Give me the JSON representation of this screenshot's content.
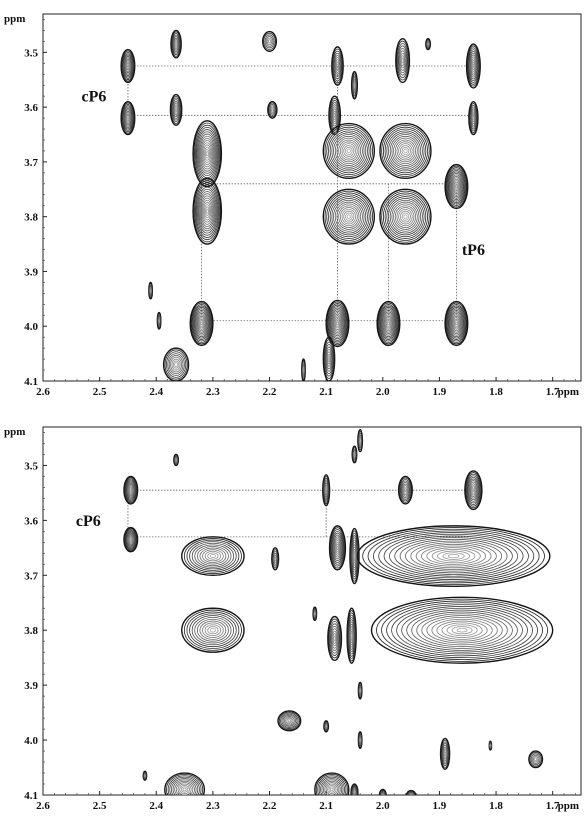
{
  "chart_data": [
    {
      "type": "contour",
      "panel": "top",
      "xlabel": "ppm",
      "ylabel": "ppm",
      "xlim": [
        2.6,
        1.65
      ],
      "ylim": [
        4.1,
        3.43
      ],
      "x_ticks": [
        2.6,
        2.5,
        2.4,
        2.3,
        2.2,
        2.1,
        2.0,
        1.9,
        1.8,
        1.7
      ],
      "x_tick_labels": [
        "2.6",
        "2.5",
        "2.4",
        "2.3",
        "2.2",
        "2.1",
        "2.0",
        "1.9",
        "1.8",
        "1.7"
      ],
      "y_ticks": [
        3.5,
        3.6,
        3.7,
        3.8,
        3.9,
        4.0,
        4.1
      ],
      "y_tick_labels": [
        "3.5",
        "3.6",
        "3.7",
        "3.8",
        "3.9",
        "4.0",
        "4.1"
      ],
      "annotations": [
        {
          "text": "cP6",
          "x": 2.51,
          "y": 3.59
        },
        {
          "text": "tP6",
          "x": 1.84,
          "y": 3.87
        }
      ],
      "guides_h": [
        {
          "y": 3.525,
          "x1": 2.45,
          "x2": 1.84
        },
        {
          "y": 3.615,
          "x1": 2.45,
          "x2": 1.84
        },
        {
          "y": 3.74,
          "x1": 2.32,
          "x2": 1.87
        },
        {
          "y": 3.99,
          "x1": 2.32,
          "x2": 1.87
        }
      ],
      "guides_v": [
        {
          "x": 2.45,
          "y1": 3.525,
          "y2": 3.615
        },
        {
          "x": 2.32,
          "y1": 3.74,
          "y2": 3.99
        },
        {
          "x": 2.08,
          "y1": 3.525,
          "y2": 3.99
        },
        {
          "x": 1.99,
          "y1": 3.74,
          "y2": 3.99
        },
        {
          "x": 1.87,
          "y1": 3.74,
          "y2": 3.99
        }
      ],
      "peaks": [
        {
          "x": 2.45,
          "y": 3.525,
          "rx": 0.012,
          "ry": 0.03,
          "level": 3
        },
        {
          "x": 2.45,
          "y": 3.62,
          "rx": 0.012,
          "ry": 0.03,
          "level": 3
        },
        {
          "x": 2.365,
          "y": 3.485,
          "rx": 0.009,
          "ry": 0.025,
          "level": 2
        },
        {
          "x": 2.365,
          "y": 3.605,
          "rx": 0.01,
          "ry": 0.028,
          "level": 2
        },
        {
          "x": 2.2,
          "y": 3.48,
          "rx": 0.012,
          "ry": 0.018,
          "level": 1
        },
        {
          "x": 2.195,
          "y": 3.605,
          "rx": 0.008,
          "ry": 0.015,
          "level": 1
        },
        {
          "x": 2.08,
          "y": 3.525,
          "rx": 0.01,
          "ry": 0.035,
          "level": 2
        },
        {
          "x": 2.085,
          "y": 3.615,
          "rx": 0.01,
          "ry": 0.035,
          "level": 2
        },
        {
          "x": 2.05,
          "y": 3.56,
          "rx": 0.005,
          "ry": 0.025,
          "level": 2
        },
        {
          "x": 1.965,
          "y": 3.515,
          "rx": 0.012,
          "ry": 0.04,
          "level": 2
        },
        {
          "x": 1.92,
          "y": 3.485,
          "rx": 0.004,
          "ry": 0.01,
          "level": 1
        },
        {
          "x": 1.84,
          "y": 3.525,
          "rx": 0.012,
          "ry": 0.04,
          "level": 3
        },
        {
          "x": 1.84,
          "y": 3.62,
          "rx": 0.008,
          "ry": 0.03,
          "level": 2
        },
        {
          "x": 2.31,
          "y": 3.685,
          "rx": 0.025,
          "ry": 0.06,
          "level": 4
        },
        {
          "x": 2.31,
          "y": 3.79,
          "rx": 0.025,
          "ry": 0.06,
          "level": 4
        },
        {
          "x": 2.06,
          "y": 3.68,
          "rx": 0.045,
          "ry": 0.05,
          "level": 4
        },
        {
          "x": 1.96,
          "y": 3.68,
          "rx": 0.045,
          "ry": 0.05,
          "level": 4
        },
        {
          "x": 2.06,
          "y": 3.8,
          "rx": 0.045,
          "ry": 0.05,
          "level": 4
        },
        {
          "x": 1.96,
          "y": 3.8,
          "rx": 0.045,
          "ry": 0.05,
          "level": 4
        },
        {
          "x": 1.87,
          "y": 3.745,
          "rx": 0.02,
          "ry": 0.04,
          "level": 4
        },
        {
          "x": 2.32,
          "y": 3.995,
          "rx": 0.02,
          "ry": 0.04,
          "level": 4
        },
        {
          "x": 2.08,
          "y": 3.995,
          "rx": 0.02,
          "ry": 0.042,
          "level": 4
        },
        {
          "x": 1.99,
          "y": 3.995,
          "rx": 0.02,
          "ry": 0.04,
          "level": 4
        },
        {
          "x": 1.87,
          "y": 3.995,
          "rx": 0.02,
          "ry": 0.04,
          "level": 4
        },
        {
          "x": 2.095,
          "y": 4.06,
          "rx": 0.01,
          "ry": 0.04,
          "level": 2
        },
        {
          "x": 2.365,
          "y": 4.07,
          "rx": 0.022,
          "ry": 0.03,
          "level": 2
        },
        {
          "x": 2.41,
          "y": 3.935,
          "rx": 0.003,
          "ry": 0.015,
          "level": 1
        },
        {
          "x": 2.395,
          "y": 3.99,
          "rx": 0.003,
          "ry": 0.015,
          "level": 1
        },
        {
          "x": 2.14,
          "y": 4.08,
          "rx": 0.003,
          "ry": 0.02,
          "level": 1
        }
      ]
    },
    {
      "type": "contour",
      "panel": "bottom",
      "xlabel": "ppm",
      "ylabel": "ppm",
      "xlim": [
        2.6,
        1.65
      ],
      "ylim": [
        4.1,
        3.43
      ],
      "x_ticks": [
        2.6,
        2.5,
        2.4,
        2.3,
        2.2,
        2.1,
        2.0,
        1.9,
        1.8,
        1.7
      ],
      "x_tick_labels": [
        "2.6",
        "2.5",
        "2.4",
        "2.3",
        "2.2",
        "2.1",
        "2.0",
        "1.9",
        "1.8",
        "1.7"
      ],
      "y_ticks": [
        3.5,
        3.6,
        3.7,
        3.8,
        3.9,
        4.0,
        4.1
      ],
      "y_tick_labels": [
        "3.5",
        "3.6",
        "3.7",
        "3.8",
        "3.9",
        "4.0",
        "4.1"
      ],
      "annotations": [
        {
          "text": "cP6",
          "x": 2.52,
          "y": 3.61
        }
      ],
      "guides_h": [
        {
          "y": 3.545,
          "x1": 2.45,
          "x2": 1.84
        },
        {
          "y": 3.63,
          "x1": 2.45,
          "x2": 1.84
        }
      ],
      "guides_v": [
        {
          "x": 2.45,
          "y1": 3.545,
          "y2": 3.63
        },
        {
          "x": 2.1,
          "y1": 3.545,
          "y2": 3.63
        }
      ],
      "peaks": [
        {
          "x": 2.445,
          "y": 3.545,
          "rx": 0.012,
          "ry": 0.025,
          "level": 3
        },
        {
          "x": 2.445,
          "y": 3.635,
          "rx": 0.012,
          "ry": 0.022,
          "level": 3
        },
        {
          "x": 2.365,
          "y": 3.49,
          "rx": 0.004,
          "ry": 0.01,
          "level": 1
        },
        {
          "x": 2.3,
          "y": 3.665,
          "rx": 0.055,
          "ry": 0.035,
          "level": 3
        },
        {
          "x": 2.19,
          "y": 3.67,
          "rx": 0.006,
          "ry": 0.02,
          "level": 1
        },
        {
          "x": 2.1,
          "y": 3.545,
          "rx": 0.006,
          "ry": 0.028,
          "level": 2
        },
        {
          "x": 2.05,
          "y": 3.48,
          "rx": 0.004,
          "ry": 0.015,
          "level": 1
        },
        {
          "x": 2.04,
          "y": 3.455,
          "rx": 0.004,
          "ry": 0.02,
          "level": 1
        },
        {
          "x": 1.96,
          "y": 3.545,
          "rx": 0.012,
          "ry": 0.025,
          "level": 2
        },
        {
          "x": 1.84,
          "y": 3.545,
          "rx": 0.015,
          "ry": 0.035,
          "level": 3
        },
        {
          "x": 2.08,
          "y": 3.65,
          "rx": 0.014,
          "ry": 0.04,
          "level": 3
        },
        {
          "x": 2.05,
          "y": 3.665,
          "rx": 0.008,
          "ry": 0.05,
          "level": 3
        },
        {
          "x": 1.875,
          "y": 3.665,
          "rx": 0.17,
          "ry": 0.055,
          "level": 5
        },
        {
          "x": 2.3,
          "y": 3.8,
          "rx": 0.055,
          "ry": 0.04,
          "level": 3
        },
        {
          "x": 2.12,
          "y": 3.77,
          "rx": 0.003,
          "ry": 0.012,
          "level": 1
        },
        {
          "x": 2.085,
          "y": 3.815,
          "rx": 0.012,
          "ry": 0.04,
          "level": 2
        },
        {
          "x": 2.055,
          "y": 3.81,
          "rx": 0.008,
          "ry": 0.05,
          "level": 3
        },
        {
          "x": 1.86,
          "y": 3.8,
          "rx": 0.16,
          "ry": 0.06,
          "level": 5
        },
        {
          "x": 2.04,
          "y": 3.91,
          "rx": 0.003,
          "ry": 0.015,
          "level": 1
        },
        {
          "x": 2.165,
          "y": 3.965,
          "rx": 0.02,
          "ry": 0.018,
          "level": 2
        },
        {
          "x": 2.1,
          "y": 3.975,
          "rx": 0.004,
          "ry": 0.01,
          "level": 1
        },
        {
          "x": 2.04,
          "y": 4.0,
          "rx": 0.003,
          "ry": 0.015,
          "level": 1
        },
        {
          "x": 1.89,
          "y": 4.025,
          "rx": 0.008,
          "ry": 0.028,
          "level": 2
        },
        {
          "x": 1.81,
          "y": 4.01,
          "rx": 0.002,
          "ry": 0.008,
          "level": 1
        },
        {
          "x": 1.73,
          "y": 4.035,
          "rx": 0.012,
          "ry": 0.015,
          "level": 1
        },
        {
          "x": 2.42,
          "y": 4.065,
          "rx": 0.003,
          "ry": 0.008,
          "level": 1
        },
        {
          "x": 2.35,
          "y": 4.09,
          "rx": 0.035,
          "ry": 0.03,
          "level": 3
        },
        {
          "x": 2.09,
          "y": 4.09,
          "rx": 0.03,
          "ry": 0.03,
          "level": 3
        },
        {
          "x": 2.05,
          "y": 4.095,
          "rx": 0.006,
          "ry": 0.015,
          "level": 2
        },
        {
          "x": 2.0,
          "y": 4.1,
          "rx": 0.006,
          "ry": 0.01,
          "level": 1
        },
        {
          "x": 1.95,
          "y": 4.1,
          "rx": 0.008,
          "ry": 0.008,
          "level": 1
        }
      ]
    }
  ]
}
